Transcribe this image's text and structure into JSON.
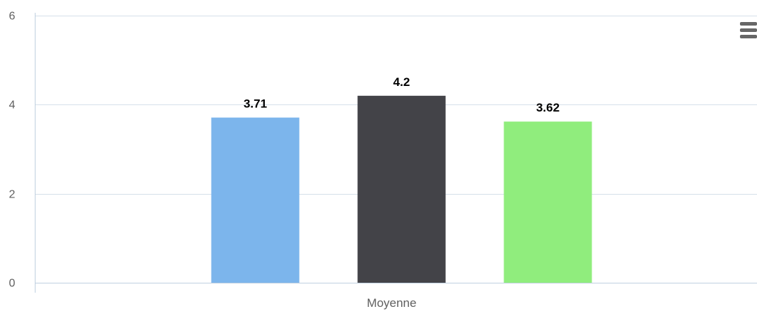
{
  "chart_data": {
    "type": "bar",
    "categories": [
      "Moyenne"
    ],
    "series": [
      {
        "values": [
          3.71
        ],
        "color": "#7cb5ec"
      },
      {
        "values": [
          4.2
        ],
        "color": "#434348"
      },
      {
        "values": [
          3.62
        ],
        "color": "#90ed7d"
      }
    ],
    "ylim": [
      0,
      6
    ],
    "y_ticks": [
      0,
      2,
      4,
      6
    ],
    "title": "",
    "xlabel": "",
    "ylabel": "",
    "grid": true,
    "data_labels": true,
    "legend": false
  },
  "menu_icon": "hamburger-menu-icon"
}
